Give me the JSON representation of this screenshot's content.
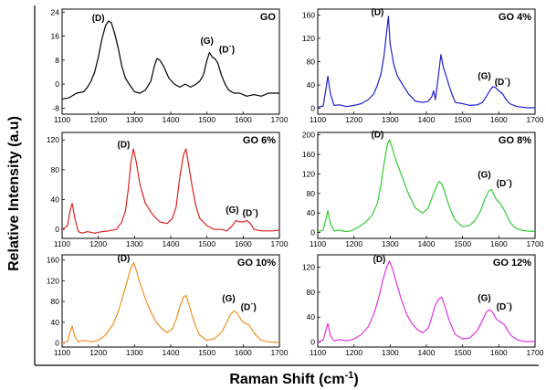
{
  "figure": {
    "xlabel": "Raman Shift (cm",
    "xlabel_sup": "-1",
    "xlabel_end": ")",
    "ylabel": "Relative Intensity (a.u)"
  },
  "chart_data": [
    {
      "type": "line",
      "title": "GO",
      "color": "#000000",
      "xlim": [
        1100,
        1700
      ],
      "ylim": [
        -10,
        25
      ],
      "xticks": [
        1100,
        1200,
        1300,
        1400,
        1500,
        1600,
        1700
      ],
      "yticks": [
        -8,
        0,
        8,
        16,
        24
      ],
      "x": [
        1100,
        1120,
        1140,
        1160,
        1170,
        1180,
        1190,
        1200,
        1210,
        1220,
        1228,
        1236,
        1245,
        1255,
        1265,
        1275,
        1285,
        1300,
        1315,
        1330,
        1345,
        1355,
        1362,
        1370,
        1380,
        1395,
        1410,
        1425,
        1440,
        1455,
        1470,
        1480,
        1490,
        1500,
        1507,
        1515,
        1522,
        1530,
        1540,
        1550,
        1560,
        1575,
        1590,
        1610,
        1630,
        1650,
        1670,
        1700
      ],
      "y": [
        -5,
        -4.5,
        -3,
        -2.5,
        -1,
        1,
        4,
        9,
        15,
        19.5,
        21,
        20.5,
        17,
        12,
        6,
        2,
        0,
        -2.5,
        -3,
        -2,
        1,
        6,
        8.5,
        8,
        6,
        2,
        0,
        -1,
        0,
        -1,
        0,
        1,
        3,
        8,
        10.5,
        9,
        8.5,
        7,
        3,
        0,
        -2,
        -3,
        -3,
        -4,
        -3.5,
        -4,
        -3,
        -3
      ],
      "annotations": [
        {
          "text": "(D)",
          "x": 1200,
          "y": 21
        },
        {
          "text": "(G)",
          "x": 1500,
          "y": 13.5
        },
        {
          "text": "(D´)",
          "x": 1555,
          "y": 10.5
        }
      ]
    },
    {
      "type": "line",
      "title": "GO 4%",
      "color": "#1f1fcc",
      "xlim": [
        1100,
        1700
      ],
      "ylim": [
        -10,
        170
      ],
      "xticks": [
        1100,
        1200,
        1300,
        1400,
        1500,
        1600,
        1700
      ],
      "yticks": [
        0,
        40,
        80,
        120,
        160
      ],
      "x": [
        1100,
        1115,
        1122,
        1128,
        1135,
        1145,
        1160,
        1180,
        1200,
        1220,
        1240,
        1255,
        1265,
        1275,
        1283,
        1290,
        1295,
        1300,
        1310,
        1320,
        1335,
        1350,
        1370,
        1390,
        1405,
        1415,
        1420,
        1425,
        1432,
        1440,
        1447,
        1455,
        1462,
        1470,
        1480,
        1500,
        1520,
        1540,
        1555,
        1565,
        1575,
        1583,
        1590,
        1600,
        1610,
        1620,
        1630,
        1650,
        1680,
        1700
      ],
      "y": [
        2,
        4,
        30,
        55,
        25,
        5,
        6,
        3,
        5,
        8,
        15,
        25,
        40,
        60,
        90,
        130,
        158,
        110,
        75,
        55,
        40,
        25,
        12,
        10,
        12,
        20,
        30,
        15,
        50,
        92,
        70,
        55,
        40,
        25,
        10,
        8,
        5,
        6,
        10,
        20,
        30,
        37,
        36,
        30,
        25,
        15,
        8,
        3,
        1,
        1
      ],
      "annotations": [
        {
          "text": "(D)",
          "x": 1265,
          "y": 160
        },
        {
          "text": "(G)",
          "x": 1560,
          "y": 50
        },
        {
          "text": "(D´)",
          "x": 1610,
          "y": 40
        }
      ]
    },
    {
      "type": "line",
      "title": "GO 6%",
      "color": "#dd2222",
      "xlim": [
        1100,
        1700
      ],
      "ylim": [
        -12,
        130
      ],
      "xticks": [
        1100,
        1200,
        1300,
        1400,
        1500,
        1600,
        1700
      ],
      "yticks": [
        0,
        40,
        80,
        120
      ],
      "x": [
        1100,
        1115,
        1122,
        1128,
        1135,
        1145,
        1155,
        1170,
        1190,
        1210,
        1230,
        1250,
        1265,
        1275,
        1283,
        1290,
        1297,
        1305,
        1315,
        1330,
        1350,
        1370,
        1390,
        1405,
        1415,
        1425,
        1435,
        1442,
        1450,
        1460,
        1470,
        1480,
        1500,
        1520,
        1540,
        1555,
        1570,
        1580,
        1590,
        1600,
        1610,
        1620,
        1630,
        1650,
        1680,
        1700
      ],
      "y": [
        0,
        5,
        25,
        35,
        15,
        -3,
        -5,
        -3,
        -5,
        -3,
        -2,
        0,
        10,
        25,
        55,
        90,
        108,
        90,
        60,
        35,
        20,
        10,
        8,
        15,
        30,
        70,
        100,
        108,
        85,
        55,
        30,
        15,
        5,
        0,
        0,
        -2,
        5,
        12,
        10,
        10,
        12,
        8,
        0,
        -2,
        -2,
        -1
      ],
      "annotations": [
        {
          "text": "(D)",
          "x": 1270,
          "y": 110
        },
        {
          "text": "(G)",
          "x": 1570,
          "y": 22
        },
        {
          "text": "(D´)",
          "x": 1620,
          "y": 18
        }
      ]
    },
    {
      "type": "line",
      "title": "GO 8%",
      "color": "#33cc33",
      "xlim": [
        1100,
        1700
      ],
      "ylim": [
        -12,
        205
      ],
      "xticks": [
        1100,
        1200,
        1300,
        1400,
        1500,
        1600,
        1700
      ],
      "yticks": [
        0,
        40,
        80,
        120,
        160,
        200
      ],
      "x": [
        1100,
        1115,
        1122,
        1128,
        1135,
        1145,
        1160,
        1175,
        1190,
        1210,
        1230,
        1250,
        1265,
        1275,
        1285,
        1292,
        1298,
        1305,
        1315,
        1330,
        1350,
        1370,
        1390,
        1405,
        1415,
        1425,
        1435,
        1442,
        1450,
        1460,
        1470,
        1480,
        1500,
        1520,
        1535,
        1550,
        1562,
        1572,
        1580,
        1588,
        1595,
        1602,
        1612,
        1622,
        1632,
        1645,
        1660,
        1680,
        1700
      ],
      "y": [
        2,
        5,
        25,
        45,
        18,
        3,
        5,
        2,
        3,
        10,
        20,
        35,
        60,
        100,
        150,
        180,
        190,
        175,
        150,
        120,
        80,
        50,
        40,
        50,
        70,
        90,
        105,
        100,
        85,
        60,
        40,
        25,
        12,
        15,
        25,
        45,
        70,
        85,
        88,
        75,
        65,
        62,
        50,
        35,
        20,
        10,
        5,
        3,
        2
      ],
      "annotations": [
        {
          "text": "(D)",
          "x": 1265,
          "y": 195
        },
        {
          "text": "(G)",
          "x": 1560,
          "y": 112
        },
        {
          "text": "(D´)",
          "x": 1615,
          "y": 95
        }
      ]
    },
    {
      "type": "line",
      "title": "GO 10%",
      "color": "#f0901e",
      "xlim": [
        1100,
        1700
      ],
      "ylim": [
        -8,
        170
      ],
      "xticks": [
        1100,
        1200,
        1300,
        1400,
        1500,
        1600,
        1700
      ],
      "yticks": [
        0,
        40,
        80,
        120,
        160
      ],
      "x": [
        1100,
        1115,
        1122,
        1128,
        1135,
        1145,
        1160,
        1180,
        1200,
        1220,
        1240,
        1255,
        1268,
        1280,
        1290,
        1298,
        1305,
        1315,
        1330,
        1345,
        1360,
        1375,
        1390,
        1405,
        1415,
        1425,
        1435,
        1442,
        1450,
        1460,
        1470,
        1480,
        1500,
        1520,
        1540,
        1555,
        1565,
        1575,
        1583,
        1590,
        1597,
        1605,
        1615,
        1625,
        1635,
        1650,
        1670,
        1700
      ],
      "y": [
        0,
        3,
        20,
        33,
        12,
        2,
        5,
        2,
        5,
        15,
        35,
        60,
        90,
        120,
        145,
        155,
        140,
        115,
        85,
        60,
        40,
        28,
        20,
        28,
        45,
        70,
        88,
        92,
        75,
        50,
        30,
        15,
        5,
        8,
        20,
        40,
        55,
        62,
        58,
        50,
        42,
        38,
        35,
        25,
        15,
        5,
        2,
        1
      ],
      "annotations": [
        {
          "text": "(D)",
          "x": 1270,
          "y": 158
        },
        {
          "text": "(G)",
          "x": 1560,
          "y": 80
        },
        {
          "text": "(D´)",
          "x": 1615,
          "y": 63
        }
      ]
    },
    {
      "type": "line",
      "title": "GO 12%",
      "color": "#e033e0",
      "xlim": [
        1100,
        1700
      ],
      "ylim": [
        -8,
        140
      ],
      "xticks": [
        1100,
        1200,
        1300,
        1400,
        1500,
        1600,
        1700
      ],
      "yticks": [
        0,
        40,
        80,
        120
      ],
      "x": [
        1100,
        1115,
        1122,
        1128,
        1135,
        1145,
        1160,
        1180,
        1200,
        1220,
        1240,
        1255,
        1268,
        1280,
        1290,
        1298,
        1305,
        1315,
        1330,
        1345,
        1360,
        1375,
        1390,
        1405,
        1415,
        1425,
        1435,
        1442,
        1450,
        1460,
        1470,
        1480,
        1500,
        1520,
        1540,
        1555,
        1565,
        1575,
        1583,
        1590,
        1597,
        1605,
        1615,
        1625,
        1635,
        1650,
        1670,
        1700
      ],
      "y": [
        0,
        3,
        18,
        30,
        10,
        2,
        4,
        2,
        5,
        12,
        25,
        45,
        70,
        100,
        120,
        130,
        120,
        100,
        70,
        45,
        30,
        20,
        15,
        22,
        40,
        60,
        70,
        72,
        60,
        40,
        25,
        12,
        5,
        7,
        18,
        35,
        48,
        52,
        48,
        40,
        35,
        32,
        28,
        18,
        10,
        4,
        1,
        1
      ],
      "annotations": [
        {
          "text": "(D)",
          "x": 1270,
          "y": 128
        },
        {
          "text": "(G)",
          "x": 1560,
          "y": 66
        },
        {
          "text": "(D´)",
          "x": 1615,
          "y": 52
        }
      ]
    }
  ]
}
